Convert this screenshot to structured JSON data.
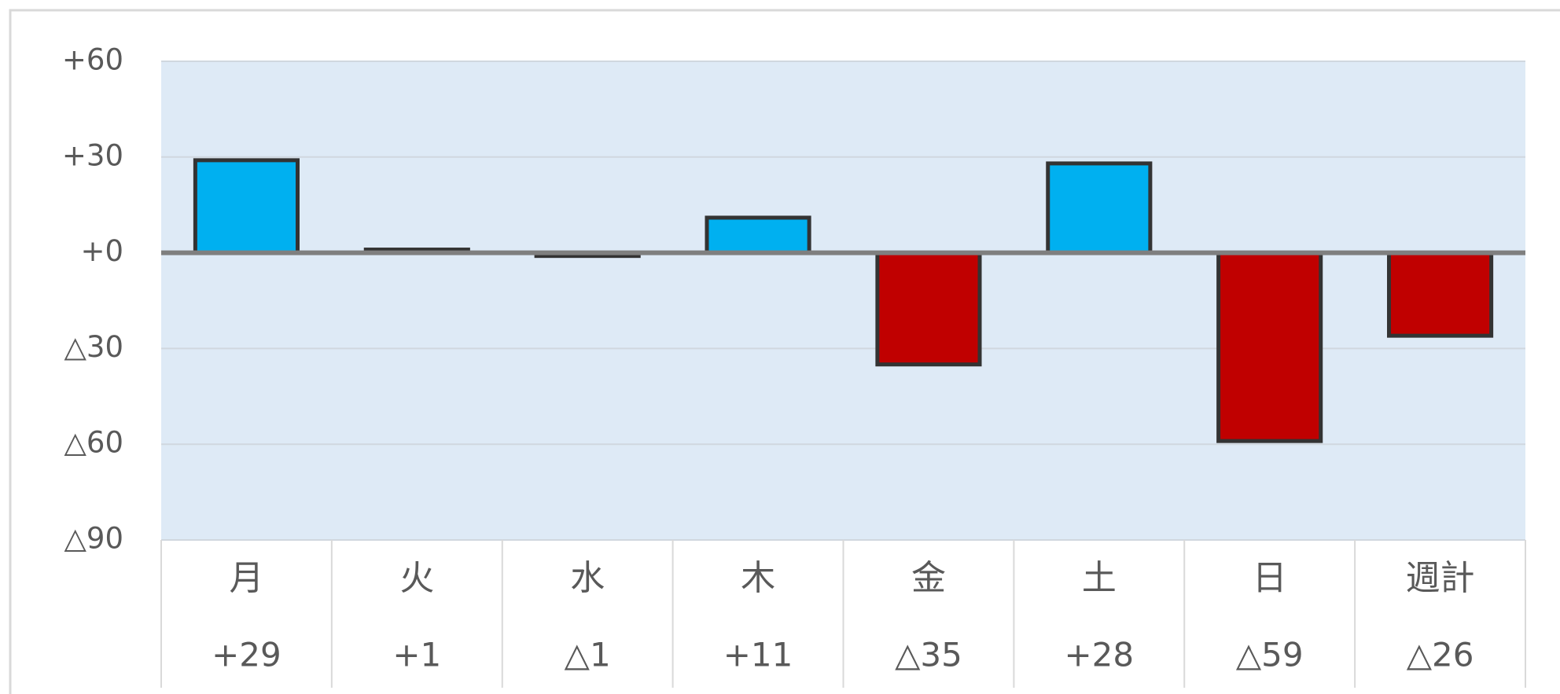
{
  "chart_data": {
    "type": "bar",
    "categories": [
      "月",
      "火",
      "水",
      "木",
      "金",
      "土",
      "日",
      "週計"
    ],
    "values": [
      29,
      1,
      -1,
      11,
      -35,
      28,
      -59,
      -26
    ],
    "value_labels": [
      "+29",
      "+1",
      "△1",
      "+11",
      "△35",
      "+28",
      "△59",
      "△26"
    ],
    "positive_color": "#00b0f0",
    "negative_color": "#c00000",
    "ylim": [
      -90,
      60
    ],
    "yticks": [
      {
        "value": 60,
        "label": "+60"
      },
      {
        "value": 30,
        "label": "+30"
      },
      {
        "value": 0,
        "label": "+0"
      },
      {
        "value": -30,
        "label": "△30"
      },
      {
        "value": -60,
        "label": "△60"
      },
      {
        "value": -90,
        "label": "△90"
      }
    ],
    "grid": true
  }
}
